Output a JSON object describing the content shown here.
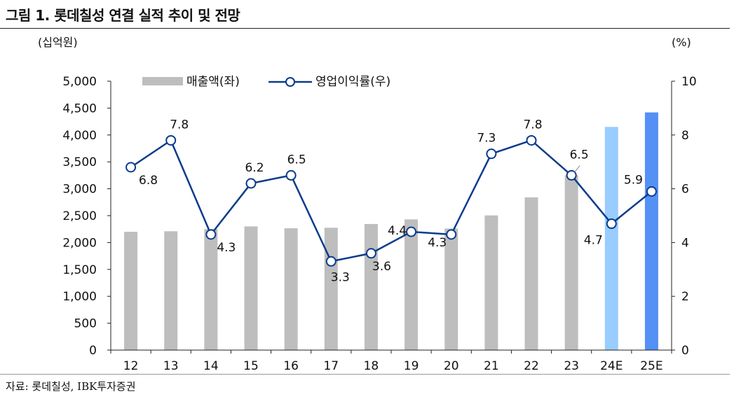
{
  "title": "그림 1. 롯데칠성 연결 실적 추이 및 전망",
  "source": "자료: 롯데칠성, IBK투자증권",
  "colors": {
    "bar": "#bebebe",
    "bar_24e": "#99ccff",
    "bar_25e": "#5590f5",
    "line": "#0b3b8c",
    "marker_fill": "#ffffff",
    "axis": "#222222",
    "text": "#111111"
  },
  "chart_data": {
    "type": "bar+line",
    "categories": [
      "12",
      "13",
      "14",
      "15",
      "16",
      "17",
      "18",
      "19",
      "20",
      "21",
      "22",
      "23",
      "24E",
      "25E"
    ],
    "series": [
      {
        "name": "매출액(좌)",
        "type": "bar",
        "axis": "left",
        "values": [
          2200,
          2210,
          2250,
          2300,
          2265,
          2275,
          2345,
          2430,
          2260,
          2505,
          2840,
          3250,
          4150,
          4420
        ]
      },
      {
        "name": "영업이익률(우)",
        "type": "line",
        "axis": "right",
        "values": [
          6.8,
          7.8,
          4.3,
          6.2,
          6.5,
          3.3,
          3.6,
          4.4,
          4.3,
          7.3,
          7.8,
          6.5,
          4.7,
          5.9
        ],
        "labels": [
          "6.8",
          "7.8",
          "4.3",
          "6.2",
          "6.5",
          "3.3",
          "3.6",
          "4.4",
          "4.3",
          "7.3",
          "7.8",
          "6.5",
          "4.7",
          "5.9"
        ]
      }
    ],
    "left_axis": {
      "unit": "(십억원)",
      "ylim": [
        0,
        5000
      ],
      "ticks": [
        0,
        500,
        1000,
        1500,
        2000,
        2500,
        3000,
        3500,
        4000,
        4500,
        5000
      ],
      "tick_labels": [
        "0",
        "500",
        "1,000",
        "1,500",
        "2,000",
        "2,500",
        "3,000",
        "3,500",
        "4,000",
        "4,500",
        "5,000"
      ]
    },
    "right_axis": {
      "unit": "(%)",
      "ylim": [
        0,
        10
      ],
      "ticks": [
        0,
        2,
        4,
        6,
        8,
        10
      ],
      "tick_labels": [
        "0",
        "2",
        "4",
        "6",
        "8",
        "10"
      ]
    },
    "legend": {
      "placement": "top-left",
      "entries": [
        "매출액(좌)",
        "영업이익률(우)"
      ]
    },
    "grid": false
  }
}
